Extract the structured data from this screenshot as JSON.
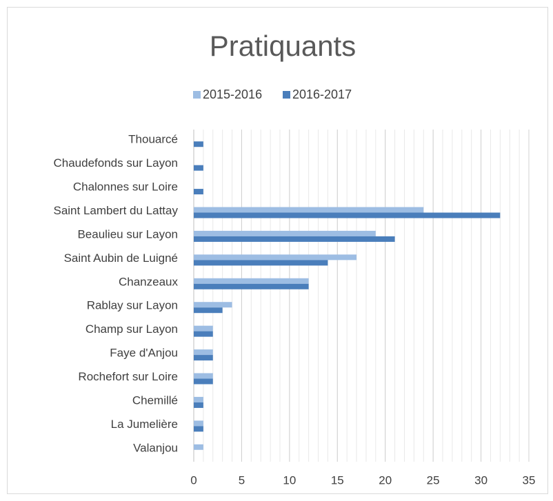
{
  "chart_data": {
    "type": "barh",
    "title": "Pratiquants",
    "categories": [
      "Thouarcé",
      "Chaudefonds sur Layon",
      "Chalonnes sur Loire",
      "Saint Lambert du Lattay",
      "Beaulieu sur Layon",
      "Saint Aubin de Luigné",
      "Chanzeaux",
      "Rablay sur Layon",
      "Champ sur Layon",
      "Faye d'Anjou",
      "Rochefort sur Loire",
      "Chemillé",
      "La Jumelière",
      "Valanjou"
    ],
    "series": [
      {
        "name": "2015-2016",
        "color": "#9dbde3",
        "values": [
          0,
          0,
          0,
          24,
          19,
          17,
          12,
          4,
          2,
          2,
          2,
          1,
          1,
          1
        ]
      },
      {
        "name": "2016-2017",
        "color": "#4a7ebb",
        "values": [
          1,
          1,
          1,
          32,
          21,
          14,
          12,
          3,
          2,
          2,
          2,
          1,
          1,
          0
        ]
      }
    ],
    "xlim": [
      0,
      35
    ],
    "xticks": [
      0,
      5,
      10,
      15,
      20,
      25,
      30,
      35
    ],
    "grid": true,
    "minor_grid_step": 1,
    "legend": "top"
  }
}
